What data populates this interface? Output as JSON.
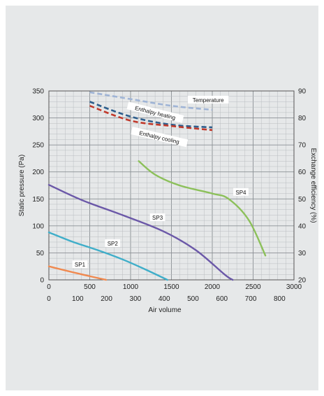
{
  "chart_data": {
    "type": "line",
    "ylabel_left": "Static pressure (Pa)",
    "ylabel_right": "Exchange efficiency (%)",
    "xlabel": "Air volume",
    "x_axis_top": {
      "ticks": [
        0,
        500,
        1000,
        1500,
        2000,
        2500,
        3000
      ],
      "range": [
        0,
        3000
      ]
    },
    "x_axis_bottom": {
      "ticks": [
        0,
        100,
        200,
        300,
        400,
        500,
        600,
        700,
        800
      ],
      "range": [
        0,
        850
      ]
    },
    "y_left": {
      "ticks": [
        0,
        50,
        100,
        150,
        200,
        250,
        300,
        350
      ],
      "range": [
        0,
        350
      ]
    },
    "y_right": {
      "ticks": [
        20,
        30,
        40,
        50,
        60,
        70,
        80,
        90
      ],
      "range": [
        20,
        90
      ]
    },
    "grid": true,
    "pressure_series": [
      {
        "name": "SP1",
        "color": "#f0894f",
        "x": [
          0,
          350,
          700
        ],
        "y": [
          25,
          12,
          0
        ]
      },
      {
        "name": "SP2",
        "color": "#3faec9",
        "x": [
          0,
          300,
          600,
          900,
          1200,
          1450
        ],
        "y": [
          88,
          70,
          55,
          38,
          18,
          0
        ]
      },
      {
        "name": "SP3",
        "color": "#6b58a8",
        "x": [
          0,
          400,
          900,
          1400,
          1800,
          2150,
          2250
        ],
        "y": [
          176,
          148,
          120,
          90,
          55,
          10,
          0
        ]
      },
      {
        "name": "SP4",
        "color": "#8cc05a",
        "x": [
          1100,
          1300,
          1600,
          2000,
          2200,
          2450,
          2650
        ],
        "y": [
          220,
          195,
          175,
          160,
          150,
          110,
          45
        ]
      }
    ],
    "efficiency_series": [
      {
        "name": "Temperature",
        "color": "#9fb4d6",
        "x": [
          500,
          1000,
          1500,
          2000
        ],
        "y": [
          89.5,
          87,
          84.5,
          83
        ]
      },
      {
        "name": "Enthalpy heating",
        "color": "#2e5e8c",
        "x": [
          500,
          1000,
          1500,
          2000
        ],
        "y": [
          86,
          80.5,
          77.5,
          76.5
        ]
      },
      {
        "name": "Enthalpy cooling",
        "color": "#c0392b",
        "x": [
          500,
          1000,
          1500,
          2000
        ],
        "y": [
          84.5,
          79,
          77,
          75.5
        ]
      }
    ]
  }
}
